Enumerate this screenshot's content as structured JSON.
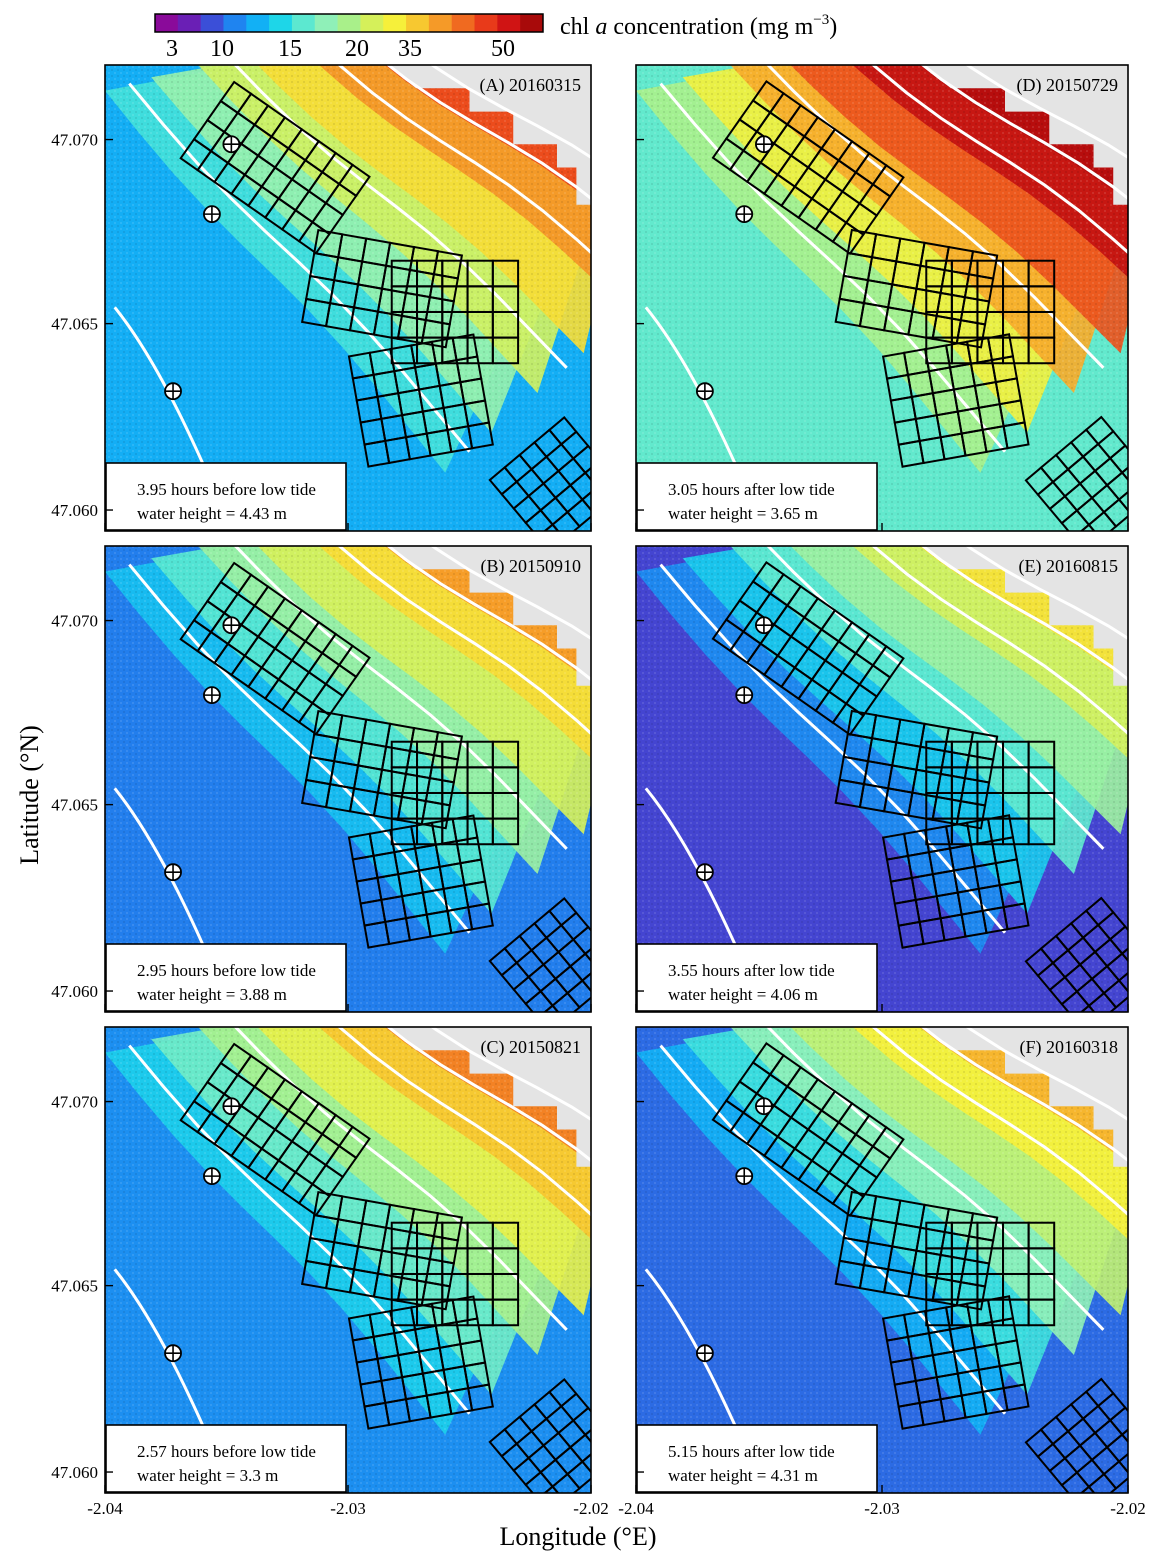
{
  "colorbar": {
    "label_prefix": "chl ",
    "label_var": "a",
    "label_mid": " concentration (mg m",
    "label_exp": "−3",
    "label_end": ")",
    "ticks": [
      "3",
      "10",
      "15",
      "20",
      "35",
      "50"
    ],
    "colors": [
      "#8a0a9a",
      "#6a1fb5",
      "#3b4fd8",
      "#1f84f0",
      "#12b0f5",
      "#1ed6e8",
      "#5ce8d0",
      "#8ff0b8",
      "#a9f08a",
      "#d5f05a",
      "#f6f03a",
      "#f7c830",
      "#f59a28",
      "#f06a20",
      "#e83a1a",
      "#d01414",
      "#a80a0a"
    ]
  },
  "axes": {
    "y_label": "Latitude (°N)",
    "x_label": "Longitude (°E)",
    "y_ticks": [
      "47.070",
      "47.065",
      "47.060"
    ],
    "x_ticks": [
      "-2.04",
      "-2.03",
      "-2.02"
    ]
  },
  "panels": [
    {
      "id": "A",
      "title": "(A) 20160315",
      "time_text": "3.95 hours before low tide",
      "height_text": "water height = 4.43 m",
      "level": 0.55
    },
    {
      "id": "B",
      "title": "(B) 20150910",
      "time_text": "2.95 hours before low tide",
      "height_text": "water height = 3.88 m",
      "level": 0.4
    },
    {
      "id": "C",
      "title": "(C) 20150821",
      "time_text": "2.57 hours before low tide",
      "height_text": "water height = 3.3 m",
      "level": 0.45
    },
    {
      "id": "D",
      "title": "(D) 20150729",
      "time_text": "3.05 hours after low tide",
      "height_text": "water height = 3.65 m",
      "level": 0.85
    },
    {
      "id": "E",
      "title": "(E) 20160815",
      "time_text": "3.55 hours after low tide",
      "height_text": "water height = 4.06 m",
      "level": 0.25
    },
    {
      "id": "F",
      "title": "(F) 20160318",
      "time_text": "5.15 hours after low tide",
      "height_text": "water height = 4.31 m",
      "level": 0.35
    }
  ]
}
